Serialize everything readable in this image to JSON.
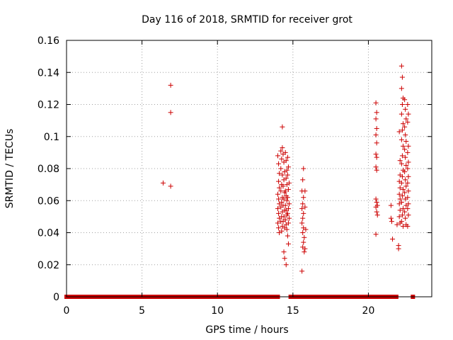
{
  "chart_data": {
    "type": "scatter",
    "title": "Day 116 of 2018, SRMTID for receiver grot",
    "xlabel": "GPS time / hours",
    "ylabel": "SRMTID / TECUs",
    "xlim": [
      0,
      24.2
    ],
    "ylim": [
      0,
      0.16
    ],
    "x_ticks": [
      0,
      5,
      10,
      15,
      20
    ],
    "x_tick_labels": [
      "0",
      "5",
      "10",
      "15",
      "20"
    ],
    "y_ticks": [
      0,
      0.02,
      0.04,
      0.06,
      0.08,
      0.1,
      0.12,
      0.14,
      0.16
    ],
    "y_tick_labels": [
      "0",
      "0.02",
      "0.04",
      "0.06",
      "0.08",
      "0.1",
      "0.12",
      "0.14",
      "0.16"
    ],
    "grid": true,
    "marker": "plus",
    "color": "#cc0000",
    "zero_segments": [
      [
        0.0,
        14.0
      ],
      [
        14.85,
        15.75
      ],
      [
        15.95,
        20.5
      ],
      [
        20.7,
        21.85
      ],
      [
        22.95,
        22.95
      ]
    ],
    "series": [
      {
        "name": "SRMTID",
        "points": [
          [
            6.4,
            0.071
          ],
          [
            6.9,
            0.132
          ],
          [
            6.9,
            0.115
          ],
          [
            6.9,
            0.069
          ],
          [
            14.0,
            0.088
          ],
          [
            14.05,
            0.083
          ],
          [
            14.1,
            0.077
          ],
          [
            14.05,
            0.072
          ],
          [
            14.1,
            0.068
          ],
          [
            14.0,
            0.064
          ],
          [
            14.05,
            0.061
          ],
          [
            14.1,
            0.058
          ],
          [
            14.0,
            0.055
          ],
          [
            14.05,
            0.052
          ],
          [
            14.1,
            0.049
          ],
          [
            14.0,
            0.046
          ],
          [
            14.05,
            0.043
          ],
          [
            14.1,
            0.04
          ],
          [
            14.2,
            0.091
          ],
          [
            14.25,
            0.086
          ],
          [
            14.2,
            0.08
          ],
          [
            14.3,
            0.076
          ],
          [
            14.25,
            0.07
          ],
          [
            14.2,
            0.066
          ],
          [
            14.3,
            0.062
          ],
          [
            14.25,
            0.059
          ],
          [
            14.2,
            0.056
          ],
          [
            14.3,
            0.053
          ],
          [
            14.25,
            0.05
          ],
          [
            14.2,
            0.047
          ],
          [
            14.3,
            0.044
          ],
          [
            14.25,
            0.041
          ],
          [
            14.3,
            0.106
          ],
          [
            14.3,
            0.093
          ],
          [
            14.35,
            0.089
          ],
          [
            14.4,
            0.084
          ],
          [
            14.45,
            0.078
          ],
          [
            14.4,
            0.073
          ],
          [
            14.35,
            0.069
          ],
          [
            14.45,
            0.065
          ],
          [
            14.4,
            0.061
          ],
          [
            14.35,
            0.057
          ],
          [
            14.45,
            0.054
          ],
          [
            14.4,
            0.05
          ],
          [
            14.35,
            0.047
          ],
          [
            14.45,
            0.043
          ],
          [
            14.4,
            0.028
          ],
          [
            14.45,
            0.024
          ],
          [
            14.55,
            0.02
          ],
          [
            14.5,
            0.09
          ],
          [
            14.55,
            0.085
          ],
          [
            14.6,
            0.079
          ],
          [
            14.55,
            0.074
          ],
          [
            14.6,
            0.07
          ],
          [
            14.5,
            0.066
          ],
          [
            14.55,
            0.063
          ],
          [
            14.6,
            0.06
          ],
          [
            14.5,
            0.057
          ],
          [
            14.55,
            0.054
          ],
          [
            14.6,
            0.051
          ],
          [
            14.5,
            0.048
          ],
          [
            14.55,
            0.045
          ],
          [
            14.6,
            0.042
          ],
          [
            14.65,
            0.087
          ],
          [
            14.7,
            0.081
          ],
          [
            14.65,
            0.076
          ],
          [
            14.75,
            0.071
          ],
          [
            14.7,
            0.067
          ],
          [
            14.65,
            0.062
          ],
          [
            14.75,
            0.058
          ],
          [
            14.7,
            0.055
          ],
          [
            14.65,
            0.052
          ],
          [
            14.75,
            0.049
          ],
          [
            14.7,
            0.046
          ],
          [
            14.65,
            0.038
          ],
          [
            14.7,
            0.033
          ],
          [
            15.7,
            0.08
          ],
          [
            15.65,
            0.073
          ],
          [
            15.6,
            0.066
          ],
          [
            15.7,
            0.062
          ],
          [
            15.65,
            0.058
          ],
          [
            15.6,
            0.055
          ],
          [
            15.7,
            0.052
          ],
          [
            15.65,
            0.049
          ],
          [
            15.6,
            0.046
          ],
          [
            15.7,
            0.043
          ],
          [
            15.65,
            0.04
          ],
          [
            15.75,
            0.037
          ],
          [
            15.7,
            0.034
          ],
          [
            15.65,
            0.031
          ],
          [
            15.75,
            0.028
          ],
          [
            15.6,
            0.016
          ],
          [
            15.8,
            0.066
          ],
          [
            15.8,
            0.056
          ],
          [
            15.85,
            0.042
          ],
          [
            15.8,
            0.03
          ],
          [
            20.5,
            0.121
          ],
          [
            20.55,
            0.115
          ],
          [
            20.5,
            0.111
          ],
          [
            20.55,
            0.105
          ],
          [
            20.5,
            0.101
          ],
          [
            20.55,
            0.096
          ],
          [
            20.5,
            0.089
          ],
          [
            20.55,
            0.087
          ],
          [
            20.5,
            0.081
          ],
          [
            20.55,
            0.079
          ],
          [
            20.5,
            0.061
          ],
          [
            20.55,
            0.059
          ],
          [
            20.6,
            0.057
          ],
          [
            20.5,
            0.056
          ],
          [
            20.55,
            0.053
          ],
          [
            20.6,
            0.051
          ],
          [
            20.5,
            0.039
          ],
          [
            21.5,
            0.057
          ],
          [
            21.5,
            0.049
          ],
          [
            21.55,
            0.047
          ],
          [
            21.6,
            0.036
          ],
          [
            21.9,
            0.045
          ],
          [
            22.0,
            0.032
          ],
          [
            22.0,
            0.03
          ],
          [
            22.05,
            0.103
          ],
          [
            22.1,
            0.085
          ],
          [
            22.1,
            0.076
          ],
          [
            22.05,
            0.072
          ],
          [
            22.1,
            0.068
          ],
          [
            22.05,
            0.064
          ],
          [
            22.1,
            0.061
          ],
          [
            22.05,
            0.058
          ],
          [
            22.1,
            0.054
          ],
          [
            22.05,
            0.05
          ],
          [
            22.1,
            0.046
          ],
          [
            22.2,
            0.144
          ],
          [
            22.25,
            0.137
          ],
          [
            22.2,
            0.13
          ],
          [
            22.3,
            0.124
          ],
          [
            22.25,
            0.12
          ],
          [
            22.2,
            0.114
          ],
          [
            22.3,
            0.108
          ],
          [
            22.25,
            0.104
          ],
          [
            22.2,
            0.098
          ],
          [
            22.3,
            0.094
          ],
          [
            22.25,
            0.088
          ],
          [
            22.2,
            0.083
          ],
          [
            22.3,
            0.079
          ],
          [
            22.25,
            0.075
          ],
          [
            22.2,
            0.071
          ],
          [
            22.3,
            0.067
          ],
          [
            22.25,
            0.063
          ],
          [
            22.2,
            0.059
          ],
          [
            22.3,
            0.055
          ],
          [
            22.25,
            0.051
          ],
          [
            22.2,
            0.047
          ],
          [
            22.3,
            0.044
          ],
          [
            22.4,
            0.123
          ],
          [
            22.45,
            0.117
          ],
          [
            22.5,
            0.111
          ],
          [
            22.4,
            0.106
          ],
          [
            22.45,
            0.101
          ],
          [
            22.5,
            0.097
          ],
          [
            22.4,
            0.092
          ],
          [
            22.45,
            0.087
          ],
          [
            22.5,
            0.082
          ],
          [
            22.4,
            0.078
          ],
          [
            22.45,
            0.073
          ],
          [
            22.5,
            0.069
          ],
          [
            22.4,
            0.065
          ],
          [
            22.45,
            0.061
          ],
          [
            22.5,
            0.057
          ],
          [
            22.4,
            0.053
          ],
          [
            22.45,
            0.049
          ],
          [
            22.5,
            0.045
          ],
          [
            22.6,
            0.12
          ],
          [
            22.65,
            0.114
          ],
          [
            22.6,
            0.109
          ],
          [
            22.65,
            0.094
          ],
          [
            22.6,
            0.09
          ],
          [
            22.65,
            0.084
          ],
          [
            22.6,
            0.08
          ],
          [
            22.65,
            0.075
          ],
          [
            22.6,
            0.071
          ],
          [
            22.65,
            0.066
          ],
          [
            22.6,
            0.062
          ],
          [
            22.65,
            0.058
          ],
          [
            22.6,
            0.055
          ],
          [
            22.65,
            0.051
          ],
          [
            22.6,
            0.044
          ]
        ]
      }
    ]
  }
}
